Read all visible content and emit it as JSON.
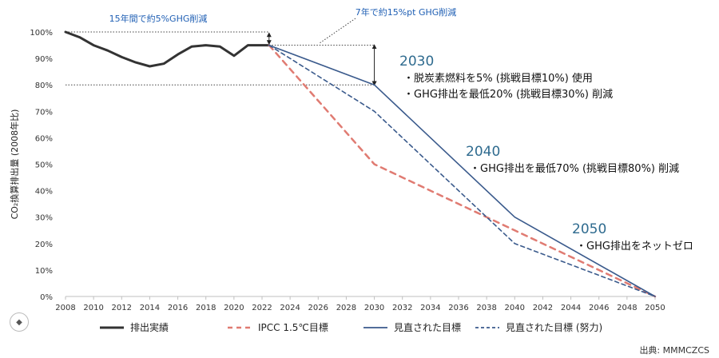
{
  "chart_data": {
    "type": "line",
    "ylabel": "CO₂換算排出量 (2008年比)",
    "ylim": [
      0,
      100
    ],
    "yticks": [
      0,
      10,
      20,
      30,
      40,
      50,
      60,
      70,
      80,
      90,
      100
    ],
    "ytick_labels": [
      "0%",
      "10%",
      "20%",
      "30%",
      "40%",
      "50%",
      "60%",
      "70%",
      "80%",
      "90%",
      "100%"
    ],
    "xlim": [
      2008,
      2050
    ],
    "xticks": [
      2008,
      2010,
      2012,
      2014,
      2016,
      2018,
      2020,
      2022,
      2024,
      2026,
      2028,
      2030,
      2032,
      2034,
      2036,
      2038,
      2040,
      2042,
      2044,
      2046,
      2048,
      2050
    ],
    "grid": false,
    "legend_position": "bottom",
    "series": [
      {
        "name": "排出実績",
        "color": "#333333",
        "style": "solid-thick",
        "x": [
          2008,
          2009,
          2010,
          2011,
          2012,
          2013,
          2014,
          2015,
          2016,
          2017,
          2018,
          2019,
          2020,
          2021,
          2022,
          2022.5
        ],
        "y": [
          100,
          98,
          95,
          93,
          90.5,
          88.5,
          87,
          88,
          91.5,
          94.5,
          95,
          94.5,
          91,
          95,
          95,
          95
        ]
      },
      {
        "name": "IPCC 1.5℃目標",
        "color": "#e07b72",
        "style": "dashed",
        "x": [
          2022.5,
          2030,
          2040,
          2050
        ],
        "y": [
          95,
          50,
          25,
          0
        ]
      },
      {
        "name": "見直された目標",
        "color": "#3a5a8c",
        "style": "solid",
        "x": [
          2022.5,
          2030,
          2040,
          2050
        ],
        "y": [
          95,
          80,
          30,
          0
        ]
      },
      {
        "name": "見直された目標 (努力)",
        "color": "#3a5a8c",
        "style": "dashed",
        "x": [
          2022.5,
          2030,
          2040,
          2050
        ],
        "y": [
          95,
          70,
          20,
          0
        ]
      }
    ],
    "annotations": [
      {
        "text": "15年間で約5%GHG削減",
        "color": "#1f5fb4"
      },
      {
        "text": "7年で約15%pt GHG削減",
        "color": "#1f5fb4"
      }
    ],
    "milestones": [
      {
        "year": "2030",
        "bullets": [
          "・脱炭素燃料を5% (挑戦目標10%) 使用",
          "・GHG排出を最低20% (挑戦目標30%) 削減"
        ]
      },
      {
        "year": "2040",
        "bullets": [
          "・GHG排出を最低70% (挑戦目標80%) 削減"
        ]
      },
      {
        "year": "2050",
        "bullets": [
          "・GHG排出をネットゼロ"
        ]
      }
    ],
    "source": "出典: MMMCZCS"
  },
  "ui": {
    "scroll_icon": "diamond-icon"
  }
}
